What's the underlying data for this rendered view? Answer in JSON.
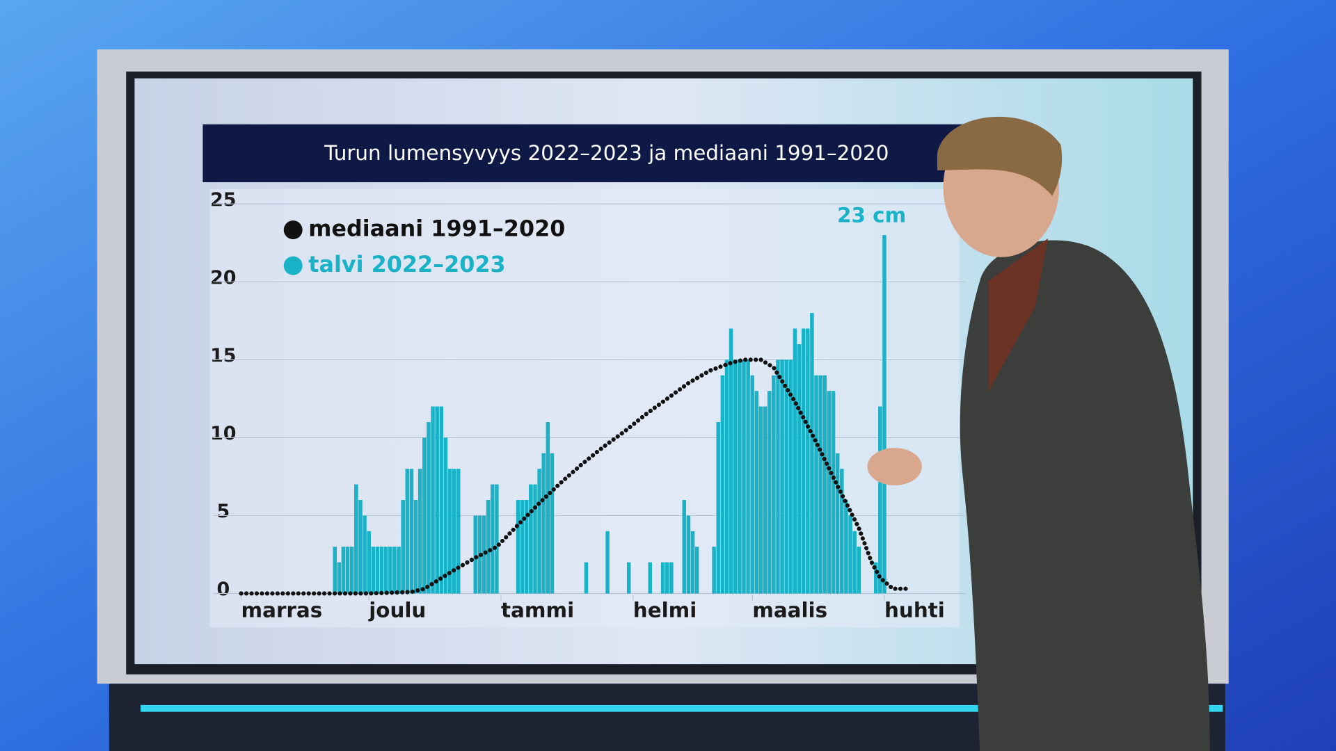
{
  "chart_data": {
    "type": "bar",
    "title": "Turun lumensyvyys 2022–2023 ja mediaani 1991–2020",
    "annotation": "23 cm",
    "xlim": [
      0,
      170
    ],
    "xticks": [
      {
        "value": 0,
        "label": "marras"
      },
      {
        "value": 30,
        "label": "joulu"
      },
      {
        "value": 61,
        "label": "tammi"
      },
      {
        "value": 92,
        "label": "helmi"
      },
      {
        "value": 120,
        "label": "maalis"
      },
      {
        "value": 151,
        "label": "huhti"
      }
    ],
    "ylim": [
      0,
      25
    ],
    "yticks": [
      0,
      5,
      10,
      15,
      20,
      25
    ],
    "grid": true,
    "series": [
      {
        "name": "mediaani 1991–2020",
        "type": "line",
        "color": "#111111",
        "x": [
          0,
          10,
          20,
          30,
          40,
          43,
          50,
          55,
          60,
          65,
          70,
          75,
          80,
          85,
          90,
          95,
          100,
          105,
          110,
          115,
          118,
          122,
          125,
          130,
          135,
          140,
          145,
          148,
          150,
          153,
          157
        ],
        "values": [
          0,
          0,
          0,
          0,
          0.1,
          0.3,
          1.5,
          2.3,
          3,
          4.4,
          5.8,
          7.1,
          8.3,
          9.4,
          10.4,
          11.5,
          12.5,
          13.5,
          14.3,
          14.8,
          15,
          15,
          14.5,
          12.3,
          9.7,
          6.9,
          4.2,
          2,
          1,
          0.3,
          0.3
        ]
      },
      {
        "name": "talvi 2022–2023",
        "type": "bar",
        "color": "#1ab2c6",
        "x": [
          22,
          23,
          24,
          25,
          26,
          27,
          28,
          29,
          30,
          31,
          32,
          33,
          34,
          35,
          36,
          37,
          38,
          39,
          40,
          41,
          42,
          43,
          44,
          45,
          46,
          47,
          48,
          49,
          50,
          51,
          55,
          56,
          57,
          58,
          59,
          60,
          65,
          66,
          67,
          68,
          69,
          70,
          71,
          72,
          73,
          81,
          86,
          91,
          96,
          99,
          100,
          101,
          104,
          105,
          106,
          107,
          111,
          112,
          113,
          114,
          115,
          116,
          117,
          118,
          119,
          120,
          121,
          122,
          123,
          124,
          125,
          126,
          127,
          128,
          129,
          130,
          131,
          132,
          133,
          134,
          135,
          136,
          137,
          138,
          139,
          140,
          141,
          142,
          143,
          144,
          145,
          149,
          150,
          151
        ],
        "values": [
          3,
          2,
          3,
          3,
          3,
          7,
          6,
          5,
          4,
          3,
          3,
          3,
          3,
          3,
          3,
          3,
          6,
          8,
          8,
          6,
          8,
          10,
          11,
          12,
          12,
          12,
          10,
          8,
          8,
          8,
          5,
          5,
          5,
          6,
          7,
          7,
          6,
          6,
          6,
          7,
          7,
          8,
          9,
          11,
          9,
          2,
          4,
          2,
          2,
          2,
          2,
          2,
          6,
          5,
          4,
          3,
          3,
          11,
          14,
          15,
          17,
          15,
          15,
          15,
          15,
          14,
          13,
          12,
          12,
          13,
          14,
          15,
          15,
          15,
          15,
          17,
          16,
          17,
          17,
          18,
          14,
          14,
          14,
          13,
          13,
          9,
          8,
          6,
          5,
          4,
          3,
          2,
          12,
          23
        ]
      }
    ]
  }
}
